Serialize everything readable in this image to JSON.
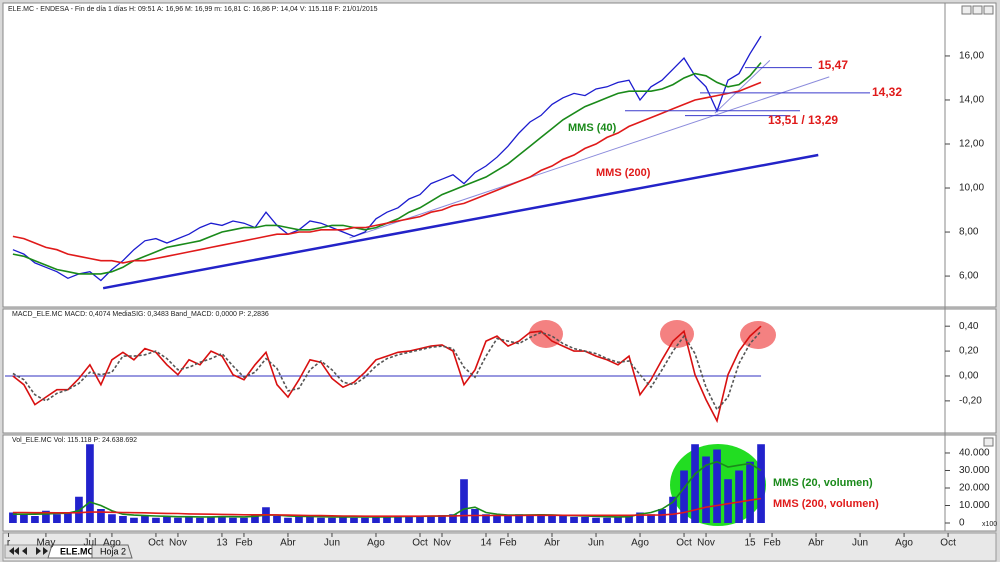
{
  "header": "ELE.MC - ENDESA - Fin de día 1 días H: 09:51 A: 16,96 M: 16,99 m: 16,81 C: 16,86 P: 14,04 V: 115.118 F: 21/01/2015",
  "tabs": [
    "ELE.MC",
    "Hoja 2"
  ],
  "chart_data": [
    {
      "type": "line",
      "x": [
        2.5,
        3,
        3.5,
        4,
        4.5,
        5,
        5.5,
        6,
        6.5,
        7,
        7.5,
        8,
        8.5,
        9,
        9.5,
        10,
        10.5,
        11,
        11.5,
        12,
        12.5,
        13,
        13.5,
        14,
        14.5,
        15,
        15.5,
        16,
        16.5,
        17,
        17.5,
        18,
        18.5,
        19,
        19.5,
        20,
        20.5,
        21,
        21.5,
        22,
        22.5,
        23,
        23.5,
        24,
        24.5,
        25,
        25.5,
        26,
        26.5,
        27,
        27.5,
        28,
        28.5,
        29,
        29.5,
        30,
        30.5,
        31,
        31.5,
        32,
        32.5,
        33,
        33.5,
        34,
        34.5,
        35,
        35.5,
        36,
        36.5
      ],
      "xlim": [
        2.14,
        44.86
      ],
      "xticks": [
        {
          "value": 2.3,
          "label": "r"
        },
        {
          "value": 4,
          "label": "May"
        },
        {
          "value": 6,
          "label": "Jul"
        },
        {
          "value": 7,
          "label": "Ago"
        },
        {
          "value": 9,
          "label": "Oct"
        },
        {
          "value": 10,
          "label": "Nov"
        },
        {
          "value": 12,
          "label": "13"
        },
        {
          "value": 13,
          "label": "Feb"
        },
        {
          "value": 15,
          "label": "Abr"
        },
        {
          "value": 17,
          "label": "Jun"
        },
        {
          "value": 19,
          "label": "Ago"
        },
        {
          "value": 21,
          "label": "Oct"
        },
        {
          "value": 22,
          "label": "Nov"
        },
        {
          "value": 24,
          "label": "14"
        },
        {
          "value": 25,
          "label": "Feb"
        },
        {
          "value": 27,
          "label": "Abr"
        },
        {
          "value": 29,
          "label": "Jun"
        },
        {
          "value": 31,
          "label": "Ago"
        },
        {
          "value": 33,
          "label": "Oct"
        },
        {
          "value": 34,
          "label": "Nov"
        },
        {
          "value": 36,
          "label": "15"
        },
        {
          "value": 37,
          "label": "Feb"
        },
        {
          "value": 39,
          "label": "Abr"
        },
        {
          "value": 41,
          "label": "Jun"
        },
        {
          "value": 43,
          "label": "Ago"
        },
        {
          "value": 45,
          "label": "Oct"
        }
      ],
      "ylim": [
        4.64,
        18.36
      ],
      "yticks": [
        {
          "value": 6,
          "label": "6,00"
        },
        {
          "value": 8,
          "label": "8,00"
        },
        {
          "value": 10,
          "label": "10,00"
        },
        {
          "value": 12,
          "label": "12,00"
        },
        {
          "value": 14,
          "label": "14,00"
        },
        {
          "value": 16,
          "label": "16,00"
        }
      ],
      "series": [
        {
          "color": "#1c1ccf",
          "values": [
            7.2,
            7.0,
            6.6,
            6.4,
            6.2,
            5.9,
            6.1,
            6.2,
            5.8,
            6.3,
            6.7,
            7.2,
            7.6,
            7.7,
            7.5,
            7.7,
            7.9,
            8.2,
            8.4,
            8.3,
            8.5,
            8.4,
            8.2,
            8.9,
            8.3,
            7.9,
            8.1,
            8.5,
            8.4,
            8.2,
            8.0,
            7.8,
            8.0,
            8.6,
            8.9,
            9.1,
            9.5,
            9.7,
            10.2,
            10.4,
            10.6,
            10.2,
            10.7,
            11.0,
            11.4,
            11.9,
            12.5,
            13.0,
            13.3,
            13.8,
            14.1,
            14.3,
            14.2,
            14.5,
            14.6,
            14.8,
            14.9,
            14.0,
            14.6,
            14.9,
            15.4,
            15.9,
            15.1,
            14.6,
            13.5,
            14.9,
            15.2,
            16.1,
            16.9
          ]
        },
        {
          "name": "MMS (40)",
          "color": "#1a8a1a",
          "values": [
            7.0,
            6.9,
            6.7,
            6.5,
            6.3,
            6.2,
            6.1,
            6.1,
            6.1,
            6.2,
            6.4,
            6.7,
            6.9,
            7.1,
            7.3,
            7.4,
            7.5,
            7.6,
            7.8,
            8.0,
            8.1,
            8.2,
            8.2,
            8.3,
            8.3,
            8.2,
            8.1,
            8.1,
            8.2,
            8.3,
            8.3,
            8.2,
            8.1,
            8.2,
            8.4,
            8.6,
            8.9,
            9.1,
            9.4,
            9.7,
            9.9,
            10.1,
            10.3,
            10.5,
            10.8,
            11.1,
            11.5,
            11.9,
            12.3,
            12.7,
            13.1,
            13.4,
            13.7,
            13.9,
            14.1,
            14.3,
            14.4,
            14.4,
            14.4,
            14.5,
            14.7,
            15.0,
            15.2,
            15.1,
            14.8,
            14.6,
            14.7,
            15.1,
            15.7
          ]
        },
        {
          "name": "MMS (200)",
          "color": "#e01a1a",
          "values": [
            7.8,
            7.7,
            7.5,
            7.3,
            7.2,
            7.0,
            6.9,
            6.8,
            6.7,
            6.7,
            6.6,
            6.7,
            6.7,
            6.8,
            6.9,
            7.0,
            7.1,
            7.2,
            7.3,
            7.4,
            7.5,
            7.6,
            7.7,
            7.8,
            7.9,
            7.9,
            8.0,
            8.0,
            8.1,
            8.1,
            8.1,
            8.2,
            8.2,
            8.3,
            8.4,
            8.5,
            8.6,
            8.7,
            8.9,
            9.0,
            9.2,
            9.3,
            9.5,
            9.7,
            9.9,
            10.1,
            10.3,
            10.5,
            10.8,
            11.0,
            11.3,
            11.5,
            11.8,
            12.0,
            12.3,
            12.5,
            12.8,
            13.0,
            13.2,
            13.4,
            13.6,
            13.8,
            14.0,
            14.1,
            14.2,
            14.3,
            14.4,
            14.6,
            14.8
          ]
        }
      ],
      "trendlines": [
        {
          "x": [
            6.6,
            39.1
          ],
          "y": [
            5.45,
            11.5
          ],
          "color": "#2323c8"
        },
        {
          "x": [
            17.8,
            39.6
          ],
          "y": [
            7.73,
            15.05
          ],
          "color": "#8c8cdc"
        },
        {
          "x": [
            34.4,
            36.9
          ],
          "y": [
            13.4,
            15.8
          ],
          "color": "#8c8cdc"
        }
      ],
      "levels": [
        {
          "values": [
            15.47
          ],
          "label": "15,47"
        },
        {
          "values": [
            14.32
          ],
          "label": "14,32"
        },
        {
          "values": [
            13.51,
            13.29
          ],
          "label": "13,51 / 13,29"
        }
      ]
    },
    {
      "type": "line",
      "title": "MACD_ELE.MC MACD: 0,4074 MediaSIG: 0,3483 Band_MACD: 0,0000 P: 2,2836",
      "x": [
        2.5,
        3,
        3.5,
        4,
        4.5,
        5,
        5.5,
        6,
        6.5,
        7,
        7.5,
        8,
        8.5,
        9,
        9.5,
        10,
        10.5,
        11,
        11.5,
        12,
        12.5,
        13,
        13.5,
        14,
        14.5,
        15,
        15.5,
        16,
        16.5,
        17,
        17.5,
        18,
        18.5,
        19,
        19.5,
        20,
        20.5,
        21,
        21.5,
        22,
        22.5,
        23,
        23.5,
        24,
        24.5,
        25,
        25.5,
        26,
        26.5,
        27,
        27.5,
        28,
        28.5,
        29,
        29.5,
        30,
        30.5,
        31,
        31.5,
        32,
        32.5,
        33,
        33.5,
        34,
        34.5,
        35,
        35.5,
        36,
        36.5
      ],
      "xlim": [
        2.14,
        44.86
      ],
      "ylim": [
        -0.45,
        0.53
      ],
      "yticks": [
        {
          "value": -0.2,
          "label": "-0,20"
        },
        {
          "value": 0,
          "label": "0,00"
        },
        {
          "value": 0.2,
          "label": "0,20"
        },
        {
          "value": 0.4,
          "label": "0,40"
        }
      ],
      "series": [
        {
          "color": "#d81010",
          "values": [
            0.0,
            -0.07,
            -0.23,
            -0.17,
            -0.11,
            -0.11,
            -0.02,
            0.09,
            -0.07,
            0.13,
            0.19,
            0.13,
            0.22,
            0.19,
            0.09,
            0.01,
            0.13,
            0.09,
            0.2,
            0.16,
            0.01,
            -0.03,
            0.09,
            0.19,
            -0.07,
            -0.17,
            -0.03,
            0.13,
            0.11,
            -0.02,
            -0.09,
            -0.05,
            0.03,
            0.13,
            0.16,
            0.19,
            0.2,
            0.22,
            0.24,
            0.25,
            0.2,
            -0.07,
            0.05,
            0.28,
            0.32,
            0.24,
            0.28,
            0.35,
            0.36,
            0.28,
            0.24,
            0.2,
            0.2,
            0.16,
            0.13,
            0.09,
            0.16,
            -0.15,
            -0.03,
            0.13,
            0.28,
            0.36,
            0.01,
            -0.19,
            -0.36,
            0.01,
            0.2,
            0.32,
            0.4
          ]
        },
        {
          "color": "#555555",
          "dashed": true,
          "values": [
            0.02,
            -0.03,
            -0.15,
            -0.2,
            -0.14,
            -0.11,
            -0.06,
            0.03,
            0.01,
            0.03,
            0.16,
            0.16,
            0.17,
            0.2,
            0.14,
            0.05,
            0.07,
            0.11,
            0.14,
            0.18,
            0.08,
            -0.01,
            0.03,
            0.14,
            0.06,
            -0.12,
            -0.1,
            0.05,
            0.12,
            0.05,
            -0.05,
            -0.07,
            -0.01,
            0.08,
            0.14,
            0.17,
            0.19,
            0.21,
            0.23,
            0.24,
            0.22,
            0.07,
            -0.01,
            0.16,
            0.3,
            0.28,
            0.26,
            0.31,
            0.35,
            0.32,
            0.26,
            0.22,
            0.2,
            0.18,
            0.14,
            0.11,
            0.12,
            0.01,
            -0.09,
            0.05,
            0.2,
            0.32,
            0.18,
            -0.09,
            -0.27,
            -0.17,
            0.1,
            0.26,
            0.36
          ]
        }
      ],
      "zero_line_color": "#3030c0"
    },
    {
      "type": "bar",
      "title": "Vol_ELE.MC Vol: 115.118 P: 24.638.692",
      "unit_label": "x100",
      "x": [
        2.5,
        3,
        3.5,
        4,
        4.5,
        5,
        5.5,
        6,
        6.5,
        7,
        7.5,
        8,
        8.5,
        9,
        9.5,
        10,
        10.5,
        11,
        11.5,
        12,
        12.5,
        13,
        13.5,
        14,
        14.5,
        15,
        15.5,
        16,
        16.5,
        17,
        17.5,
        18,
        18.5,
        19,
        19.5,
        20,
        20.5,
        21,
        21.5,
        22,
        22.5,
        23,
        23.5,
        24,
        24.5,
        25,
        25.5,
        26,
        26.5,
        27,
        27.5,
        28,
        28.5,
        29,
        29.5,
        30,
        30.5,
        31,
        31.5,
        32,
        32.5,
        33,
        33.5,
        34,
        34.5,
        35,
        35.5,
        36,
        36.5
      ],
      "xlim": [
        2.14,
        44.86
      ],
      "ylim": [
        -4000,
        49700
      ],
      "yticks": [
        0,
        {
          "value": 10000,
          "label": "10.000"
        },
        {
          "value": 20000,
          "label": "20.000"
        },
        {
          "value": 30000,
          "label": "30.000"
        },
        {
          "value": 40000,
          "label": "40.000"
        }
      ],
      "series": [
        {
          "color": "#2222cc",
          "values": [
            6000,
            5000,
            4000,
            7000,
            5000,
            6000,
            15000,
            45000,
            8000,
            5000,
            4000,
            3000,
            4000,
            3000,
            3500,
            3000,
            4000,
            3000,
            3500,
            4000,
            3000,
            3000,
            5000,
            9000,
            4000,
            3000,
            4000,
            3500,
            3000,
            3000,
            4000,
            3000,
            3000,
            3500,
            4000,
            4000,
            3500,
            4000,
            4000,
            4500,
            5000,
            25000,
            8000,
            5000,
            4000,
            4000,
            5000,
            4500,
            5000,
            4000,
            4000,
            3500,
            3500,
            3000,
            3000,
            3500,
            4000,
            6000,
            5000,
            8000,
            15000,
            30000,
            45000,
            38000,
            42000,
            25000,
            30000,
            35000,
            45000
          ]
        },
        {
          "name": "MMS (20, volumen)",
          "type": "line",
          "color": "#1a8a1a",
          "values": [
            5000,
            5000,
            5000,
            5200,
            5400,
            5600,
            7000,
            12000,
            10000,
            7000,
            5000,
            4500,
            4200,
            4000,
            3800,
            3600,
            3600,
            3500,
            3500,
            3600,
            3600,
            3500,
            3800,
            4500,
            4500,
            4000,
            3800,
            3700,
            3600,
            3500,
            3500,
            3500,
            3400,
            3400,
            3500,
            3600,
            3700,
            3800,
            3900,
            4000,
            4200,
            8000,
            9000,
            6000,
            5000,
            4500,
            4500,
            4600,
            4700,
            4600,
            4400,
            4200,
            4000,
            3800,
            3600,
            3500,
            3600,
            5000,
            6000,
            8000,
            12000,
            20000,
            28000,
            33000,
            35000,
            32000,
            33000,
            34000,
            30000
          ]
        },
        {
          "name": "MMS (200, volumen)",
          "type": "line",
          "color": "#e01a1a",
          "values": [
            6000,
            6000,
            5900,
            5900,
            5800,
            5800,
            5900,
            6200,
            6200,
            6100,
            6000,
            5900,
            5800,
            5600,
            5500,
            5400,
            5200,
            5100,
            5000,
            4900,
            4800,
            4700,
            4700,
            4700,
            4600,
            4500,
            4400,
            4300,
            4200,
            4100,
            4000,
            4000,
            3900,
            3900,
            3900,
            3900,
            3900,
            3900,
            4000,
            4000,
            4000,
            4200,
            4300,
            4300,
            4300,
            4300,
            4300,
            4400,
            4400,
            4400,
            4400,
            4400,
            4400,
            4400,
            4400,
            4400,
            4400,
            4500,
            4500,
            4600,
            5000,
            6000,
            7500,
            9000,
            10000,
            11000,
            12000,
            13000,
            14000
          ]
        }
      ]
    }
  ]
}
